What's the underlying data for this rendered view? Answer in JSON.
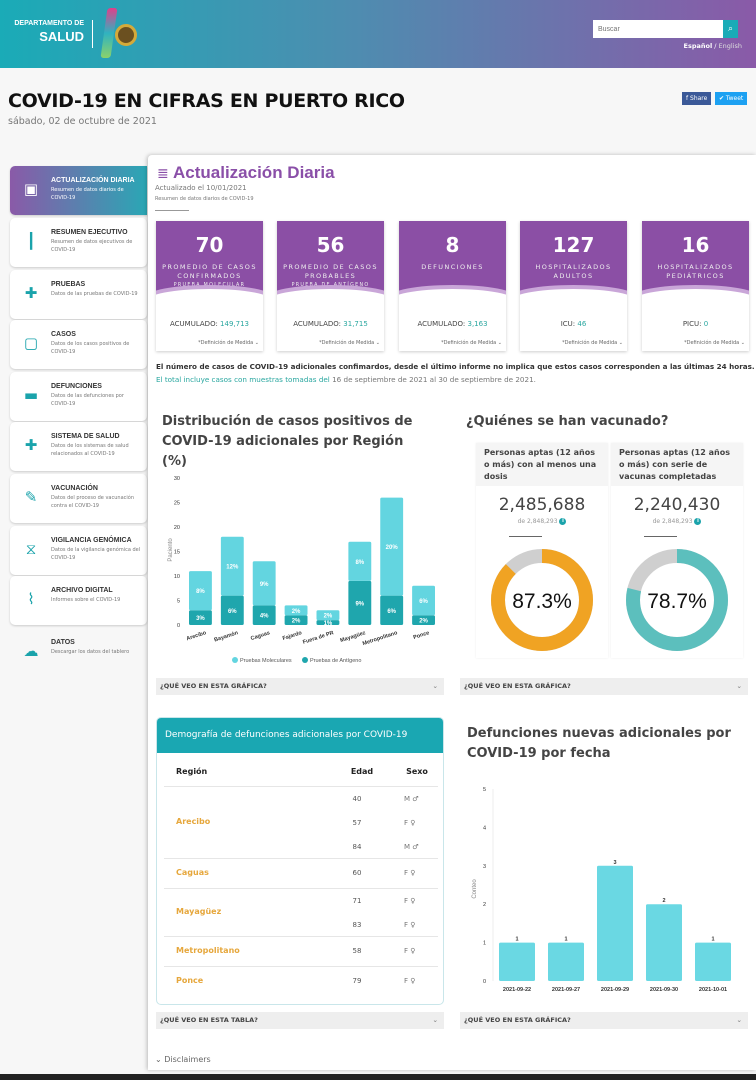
{
  "header": {
    "logo_line1": "DEPARTAMENTO DE",
    "logo_line2": "SALUD",
    "search_placeholder": "Buscar",
    "search_icon": "search-icon",
    "lang_active": "Español",
    "lang_sep": " / ",
    "lang_other": "English"
  },
  "page": {
    "title": "COVID-19 EN CIFRAS EN PUERTO RICO",
    "date": "sábado, 02 de octubre de 2021",
    "share": "f Share",
    "tweet": "✔ Tweet"
  },
  "sidebar": {
    "items": [
      {
        "title": "ACTUALIZACIÓN DIARIA",
        "desc": "Resumen de datos diarios de COVID-19",
        "icon": "calendar-icon"
      },
      {
        "title": "RESUMEN EJECUTIVO",
        "desc": "Resumen de datos ejecutivos de COVID-19",
        "icon": "bar-chart-icon"
      },
      {
        "title": "PRUEBAS",
        "desc": "Datos de las pruebas de COVID-19",
        "icon": "test-kit-icon"
      },
      {
        "title": "CASOS",
        "desc": "Datos de los casos positivos de COVID-19",
        "icon": "clipboard-icon"
      },
      {
        "title": "DEFUNCIONES",
        "desc": "Datos de las defunciones por COVID-19",
        "icon": "bed-icon"
      },
      {
        "title": "SISTEMA DE SALUD",
        "desc": "Datos de los sistemas de salud relacionados al COVID-19",
        "icon": "medical-cross-icon"
      },
      {
        "title": "VACUNACIÓN",
        "desc": "Datos del proceso de vacunación contra el COVID-19",
        "icon": "syringe-icon"
      },
      {
        "title": "VIGILANCIA GENÓMICA",
        "desc": "Datos de la vigilancia genómica del COVID-19",
        "icon": "dna-icon"
      },
      {
        "title": "ARCHIVO DIGITAL",
        "desc": "Informes sobre el COVID-19",
        "icon": "paperclip-icon"
      },
      {
        "title": "DATOS",
        "desc": "Descargar los datos del tablero",
        "icon": "cloud-download-icon"
      }
    ]
  },
  "main": {
    "title": "Actualización Diaria",
    "updated": "Actualizado el 10/01/2021",
    "summary": "Resumen de datos diarios de COVID-19",
    "cards": [
      {
        "value": "70",
        "label": "PROMEDIO DE CASOS CONFIRMADOS",
        "sub": "PRUEBA MOLECULAR",
        "acc_label": "ACUMULADO: ",
        "acc_value": "149,713"
      },
      {
        "value": "56",
        "label": "PROMEDIO DE CASOS PROBABLES",
        "sub": "PRUEBA DE ANTÍGENO",
        "acc_label": "ACUMULADO: ",
        "acc_value": "31,715"
      },
      {
        "value": "8",
        "label": "DEFUNCIONES",
        "sub": "",
        "acc_label": "ACUMULADO: ",
        "acc_value": "3,163"
      },
      {
        "value": "127",
        "label": "HOSPITALIZADOS ADULTOS",
        "sub": "",
        "acc_label": "ICU: ",
        "acc_value": "46"
      },
      {
        "value": "16",
        "label": "HOSPITALIZADOS PEDIÁTRICOS",
        "sub": "",
        "acc_label": "PICU: ",
        "acc_value": "0"
      }
    ],
    "definition": "*Definición de Medida ⌄",
    "note1": "El número de casos de COVID-19 adicionales confimardos, desde el último informe no implica que estos casos corresponden a las últimas 24 horas.",
    "note2_a": "El total incluye casos con muestras tomadas del ",
    "note2_b": "16 de septiembre de 2021 al 30 de septiembre de 2021."
  },
  "vaccines": {
    "title": "¿Quiénes se han vacunado?",
    "cards": [
      {
        "header": "Personas aptas (12 años o más) con al menos una dosis",
        "value": "2,485,688",
        "of": "de 2,848,293",
        "percent": 87.3,
        "percent_label": "87.3%",
        "color": "#f0a323"
      },
      {
        "header": "Personas aptas (12 años o más) con serie de vacunas completadas",
        "value": "2,240,430",
        "of": "de 2,848,293",
        "percent": 78.7,
        "percent_label": "78.7%",
        "color": "#5cbfbd"
      }
    ]
  },
  "accordions": {
    "graph": "¿QUÉ VEO EN ESTA GRÁFICA?",
    "table": "¿QUÉ VEO EN ESTA TABLA?"
  },
  "deaths_table": {
    "title": "Demografía de defunciones adicionales por COVID-19",
    "headers": [
      "Región",
      "Edad",
      "Sexo"
    ],
    "groups": [
      {
        "region": "Arecibo",
        "rows": [
          {
            "age": "40",
            "sex": "M ♂"
          },
          {
            "age": "57",
            "sex": "F ♀"
          },
          {
            "age": "84",
            "sex": "M ♂"
          }
        ]
      },
      {
        "region": "Caguas",
        "rows": [
          {
            "age": "60",
            "sex": "F ♀"
          }
        ]
      },
      {
        "region": "Mayagüez",
        "rows": [
          {
            "age": "71",
            "sex": "F ♀"
          },
          {
            "age": "83",
            "sex": "F ♀"
          }
        ]
      },
      {
        "region": "Metropolitano",
        "rows": [
          {
            "age": "58",
            "sex": "F ♀"
          }
        ]
      },
      {
        "region": "Ponce",
        "rows": [
          {
            "age": "79",
            "sex": "F ♀"
          }
        ]
      }
    ]
  },
  "disclaimers": "Disclaimers",
  "chart_data": [
    {
      "type": "bar",
      "stacked": true,
      "title": "Distribución de casos positivos de COVID-19 adicionales por Región (%)",
      "ylabel": "Paciento",
      "xlabel": "",
      "ylim": [
        0,
        30
      ],
      "yticks": [
        0,
        5,
        10,
        15,
        20,
        25,
        30
      ],
      "legend": "bottom",
      "categories": [
        "Arecibo",
        "Bayamón",
        "Caguas",
        "Fajardo",
        "Fuera de PR",
        "Mayagüez",
        "Metropolitano",
        "Ponce"
      ],
      "series": [
        {
          "name": "Pruebas de Antígeno",
          "color": "#1fa6ad",
          "values": [
            3,
            6,
            4,
            2,
            1,
            9,
            6,
            2
          ]
        },
        {
          "name": "Pruebas Moleculares",
          "color": "#63d5e0",
          "values": [
            8,
            12,
            9,
            2,
            2,
            8,
            20,
            6
          ]
        }
      ]
    },
    {
      "type": "bar",
      "title": "Defunciones nuevas adicionales por COVID-19 por fecha",
      "ylabel": "Conteo",
      "ylim": [
        0,
        5
      ],
      "yticks": [
        0,
        1,
        2,
        3,
        4,
        5
      ],
      "categories": [
        "2021-09-22",
        "2021-09-27",
        "2021-09-29",
        "2021-09-30",
        "2021-10-01"
      ],
      "values": [
        1,
        1,
        3,
        2,
        1
      ],
      "color": "#6ad8e3"
    }
  ]
}
